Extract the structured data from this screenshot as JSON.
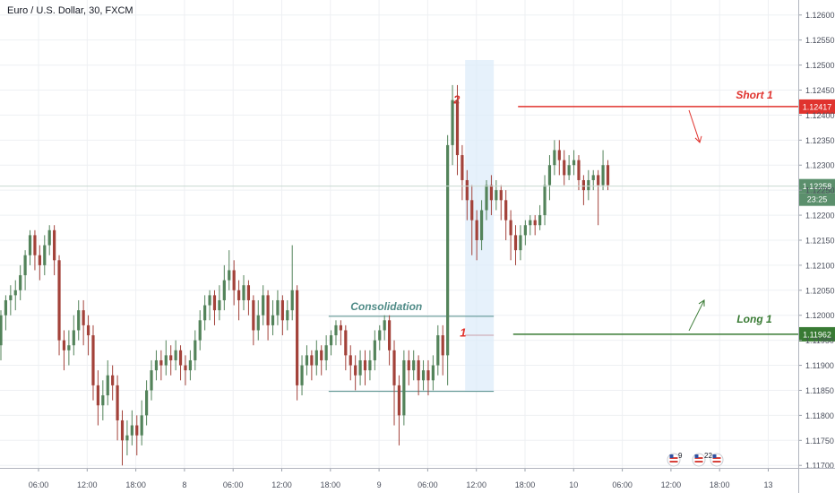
{
  "header": {
    "symbol_title": "Euro / U.S. Dollar, 30, FXCM"
  },
  "colors": {
    "up": "#53835a",
    "down": "#a3423a",
    "short_line": "#e0332e",
    "long_line": "#387a33",
    "consolidation_box": "#4f8b87",
    "grid": "#eef0f3",
    "axis_text": "#4a4f5c"
  },
  "chart_data": {
    "type": "candlestick",
    "title": "Euro / U.S. Dollar, 30, FXCM",
    "x_tick_labels": [
      "06:00",
      "12:00",
      "18:00",
      "8",
      "06:00",
      "12:00",
      "18:00",
      "9",
      "06:00",
      "12:00",
      "18:00",
      "10",
      "06:00",
      "12:00",
      "18:00",
      "13"
    ],
    "y_tick_labels": [
      "1.12600",
      "1.12550",
      "1.12500",
      "1.12450",
      "1.12400",
      "1.12350",
      "1.12300",
      "1.12250",
      "1.12200",
      "1.12150",
      "1.12100",
      "1.12050",
      "1.12000",
      "1.11950",
      "1.11900",
      "1.11850",
      "1.11800",
      "1.11750",
      "1.11700"
    ],
    "ylim": [
      1.11695,
      1.1263
    ],
    "grid": true,
    "current_price": {
      "value": 1.12258,
      "label": "1.12258",
      "countdown": "23:25"
    },
    "levels": [
      {
        "name": "Short 1",
        "value": 1.12417,
        "label": "1.12417",
        "color": "short_line"
      },
      {
        "name": "Long 1",
        "value": 1.11962,
        "label": "1.11962",
        "color": "long_line"
      }
    ],
    "annotations": [
      {
        "text": "Consolidation",
        "range": [
          1.11848,
          1.11998
        ]
      },
      {
        "text": "1"
      },
      {
        "text": "2"
      }
    ],
    "event_badges": [
      {
        "count": "9"
      },
      {
        "count": "22"
      }
    ],
    "candles": [
      [
        1.1194,
        1.12,
        1.1191,
        1.1201
      ],
      [
        1.12,
        1.1203,
        1.1197,
        1.1204
      ],
      [
        1.1203,
        1.1204,
        1.12,
        1.1206
      ],
      [
        1.1204,
        1.1205,
        1.1201,
        1.1207
      ],
      [
        1.1205,
        1.1208,
        1.1203,
        1.121
      ],
      [
        1.1208,
        1.1212,
        1.1205,
        1.1213
      ],
      [
        1.1212,
        1.1216,
        1.121,
        1.1217
      ],
      [
        1.1216,
        1.1212,
        1.1209,
        1.1217
      ],
      [
        1.1212,
        1.121,
        1.1207,
        1.1214
      ],
      [
        1.121,
        1.1214,
        1.1208,
        1.1216
      ],
      [
        1.1214,
        1.1217,
        1.1212,
        1.1218
      ],
      [
        1.1217,
        1.1211,
        1.1208,
        1.1218
      ],
      [
        1.1211,
        1.1195,
        1.1192,
        1.1212
      ],
      [
        1.1195,
        1.1193,
        1.1189,
        1.1197
      ],
      [
        1.1193,
        1.1194,
        1.119,
        1.1197
      ],
      [
        1.1194,
        1.1197,
        1.1192,
        1.12
      ],
      [
        1.1197,
        1.1201,
        1.1195,
        1.1203
      ],
      [
        1.1201,
        1.1198,
        1.1194,
        1.1203
      ],
      [
        1.1198,
        1.1196,
        1.1192,
        1.12
      ],
      [
        1.1196,
        1.1186,
        1.1183,
        1.1198
      ],
      [
        1.1186,
        1.1182,
        1.1178,
        1.1189
      ],
      [
        1.1182,
        1.1184,
        1.1179,
        1.1187
      ],
      [
        1.1184,
        1.1188,
        1.1182,
        1.1191
      ],
      [
        1.1188,
        1.1186,
        1.1183,
        1.119
      ],
      [
        1.1186,
        1.1179,
        1.1175,
        1.1188
      ],
      [
        1.1179,
        1.1175,
        1.117,
        1.1181
      ],
      [
        1.1175,
        1.1176,
        1.1172,
        1.1179
      ],
      [
        1.1176,
        1.1178,
        1.1174,
        1.1181
      ],
      [
        1.1178,
        1.1176,
        1.1172,
        1.118
      ],
      [
        1.1176,
        1.118,
        1.1174,
        1.1183
      ],
      [
        1.118,
        1.1185,
        1.1178,
        1.1187
      ],
      [
        1.1185,
        1.1189,
        1.1183,
        1.1191
      ],
      [
        1.1189,
        1.1191,
        1.1187,
        1.1193
      ],
      [
        1.1191,
        1.119,
        1.1187,
        1.1193
      ],
      [
        1.119,
        1.1192,
        1.1188,
        1.1195
      ],
      [
        1.1192,
        1.1191,
        1.1188,
        1.1194
      ],
      [
        1.1191,
        1.1193,
        1.1189,
        1.1195
      ],
      [
        1.1193,
        1.119,
        1.1187,
        1.1194
      ],
      [
        1.119,
        1.1189,
        1.1186,
        1.1192
      ],
      [
        1.1189,
        1.1191,
        1.1187,
        1.1193
      ],
      [
        1.1191,
        1.1195,
        1.1189,
        1.1197
      ],
      [
        1.1195,
        1.1199,
        1.1193,
        1.1201
      ],
      [
        1.1199,
        1.1202,
        1.1197,
        1.1204
      ],
      [
        1.1202,
        1.1204,
        1.1199,
        1.1205
      ],
      [
        1.1204,
        1.1201,
        1.1198,
        1.1205
      ],
      [
        1.1201,
        1.1203,
        1.1199,
        1.1206
      ],
      [
        1.1203,
        1.1207,
        1.1201,
        1.121
      ],
      [
        1.1207,
        1.1209,
        1.1205,
        1.1213
      ],
      [
        1.1209,
        1.1205,
        1.1202,
        1.1211
      ],
      [
        1.1205,
        1.1203,
        1.1199,
        1.1207
      ],
      [
        1.1203,
        1.1206,
        1.1201,
        1.1208
      ],
      [
        1.1206,
        1.1203,
        1.12,
        1.1207
      ],
      [
        1.1203,
        1.1197,
        1.1194,
        1.1204
      ],
      [
        1.1197,
        1.12,
        1.1195,
        1.1203
      ],
      [
        1.12,
        1.1204,
        1.1198,
        1.1206
      ],
      [
        1.1204,
        1.1198,
        1.1195,
        1.1205
      ],
      [
        1.1198,
        1.12,
        1.1196,
        1.1203
      ],
      [
        1.12,
        1.1203,
        1.1198,
        1.1205
      ],
      [
        1.1203,
        1.1199,
        1.1196,
        1.1204
      ],
      [
        1.1199,
        1.1201,
        1.1197,
        1.1203
      ],
      [
        1.1201,
        1.1205,
        1.1199,
        1.1214
      ],
      [
        1.1205,
        1.1186,
        1.1183,
        1.1206
      ],
      [
        1.1186,
        1.119,
        1.1184,
        1.1192
      ],
      [
        1.119,
        1.1192,
        1.1188,
        1.1194
      ],
      [
        1.1192,
        1.119,
        1.1187,
        1.1193
      ],
      [
        1.119,
        1.1193,
        1.1188,
        1.1195
      ],
      [
        1.1193,
        1.1191,
        1.1188,
        1.1194
      ],
      [
        1.1191,
        1.1194,
        1.1189,
        1.1196
      ],
      [
        1.1194,
        1.1196,
        1.1192,
        1.1197
      ],
      [
        1.1196,
        1.1198,
        1.1194,
        1.1199
      ],
      [
        1.1198,
        1.1197,
        1.1194,
        1.1199
      ],
      [
        1.1197,
        1.1192,
        1.1189,
        1.1198
      ],
      [
        1.1192,
        1.119,
        1.1187,
        1.1194
      ],
      [
        1.119,
        1.1188,
        1.1185,
        1.1192
      ],
      [
        1.1188,
        1.1191,
        1.1186,
        1.1193
      ],
      [
        1.1191,
        1.1189,
        1.1186,
        1.1193
      ],
      [
        1.1189,
        1.1191,
        1.1187,
        1.1193
      ],
      [
        1.1191,
        1.1195,
        1.1189,
        1.1197
      ],
      [
        1.1195,
        1.1197,
        1.1193,
        1.1198
      ],
      [
        1.1197,
        1.1199,
        1.1195,
        1.12
      ],
      [
        1.1199,
        1.1193,
        1.119,
        1.12
      ],
      [
        1.1193,
        1.1186,
        1.1178,
        1.1195
      ],
      [
        1.1186,
        1.118,
        1.1174,
        1.1188
      ],
      [
        1.118,
        1.1191,
        1.1178,
        1.1193
      ],
      [
        1.1191,
        1.1189,
        1.1186,
        1.1193
      ],
      [
        1.1189,
        1.1191,
        1.1187,
        1.1193
      ],
      [
        1.1191,
        1.1187,
        1.1184,
        1.1192
      ],
      [
        1.1187,
        1.1189,
        1.1185,
        1.1191
      ],
      [
        1.1189,
        1.1187,
        1.1184,
        1.1191
      ],
      [
        1.1187,
        1.119,
        1.1185,
        1.1192
      ],
      [
        1.119,
        1.1196,
        1.1188,
        1.1198
      ],
      [
        1.1196,
        1.1192,
        1.1188,
        1.1198
      ],
      [
        1.1192,
        1.1234,
        1.1186,
        1.1236
      ],
      [
        1.1234,
        1.1243,
        1.123,
        1.1246
      ],
      [
        1.1243,
        1.1232,
        1.1228,
        1.1246
      ],
      [
        1.1232,
        1.1227,
        1.1223,
        1.1234
      ],
      [
        1.1227,
        1.1223,
        1.1219,
        1.1229
      ],
      [
        1.1223,
        1.1219,
        1.1212,
        1.1226
      ],
      [
        1.1219,
        1.1215,
        1.1211,
        1.1221
      ],
      [
        1.1215,
        1.1221,
        1.1213,
        1.1223
      ],
      [
        1.1221,
        1.1226,
        1.1219,
        1.1227
      ],
      [
        1.1226,
        1.1223,
        1.122,
        1.1228
      ],
      [
        1.1223,
        1.1225,
        1.1221,
        1.1227
      ],
      [
        1.1225,
        1.1223,
        1.1219,
        1.1226
      ],
      [
        1.1223,
        1.1219,
        1.1215,
        1.1225
      ],
      [
        1.1219,
        1.1216,
        1.1211,
        1.1221
      ],
      [
        1.1216,
        1.1213,
        1.121,
        1.1218
      ],
      [
        1.1213,
        1.1216,
        1.1211,
        1.1218
      ],
      [
        1.1216,
        1.1218,
        1.1214,
        1.1219
      ],
      [
        1.1218,
        1.1219,
        1.1216,
        1.122
      ],
      [
        1.1219,
        1.1218,
        1.1216,
        1.122
      ],
      [
        1.1218,
        1.122,
        1.1217,
        1.1222
      ],
      [
        1.122,
        1.1226,
        1.1218,
        1.1228
      ],
      [
        1.1226,
        1.123,
        1.1223,
        1.1232
      ],
      [
        1.123,
        1.1233,
        1.1228,
        1.1235
      ],
      [
        1.1233,
        1.1231,
        1.1228,
        1.1235
      ],
      [
        1.1231,
        1.1228,
        1.1226,
        1.1233
      ],
      [
        1.1228,
        1.123,
        1.1227,
        1.1232
      ],
      [
        1.123,
        1.1231,
        1.1228,
        1.1233
      ],
      [
        1.1231,
        1.1227,
        1.1225,
        1.1232
      ],
      [
        1.1227,
        1.1225,
        1.1222,
        1.1228
      ],
      [
        1.1225,
        1.1227,
        1.1223,
        1.1229
      ],
      [
        1.1227,
        1.1228,
        1.1225,
        1.1229
      ],
      [
        1.1228,
        1.1226,
        1.1218,
        1.1229
      ],
      [
        1.1226,
        1.123,
        1.1225,
        1.1233
      ],
      [
        1.123,
        1.1226,
        1.1225,
        1.1231
      ]
    ]
  }
}
